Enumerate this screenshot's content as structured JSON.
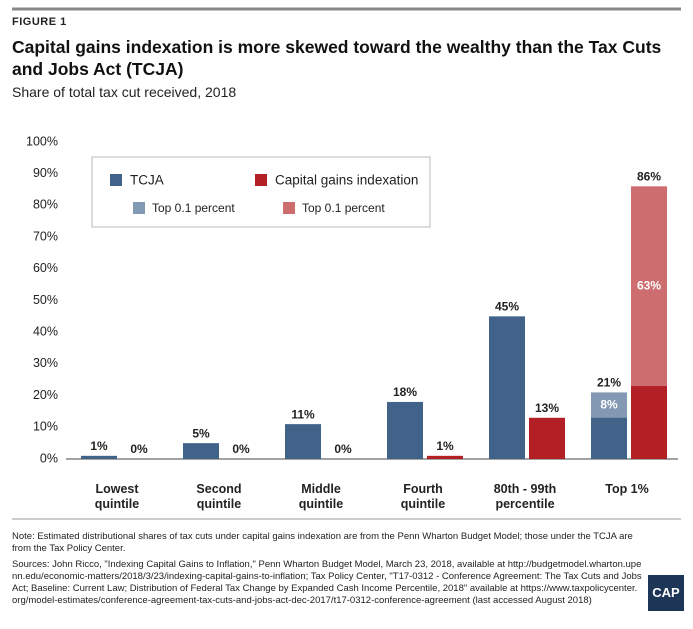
{
  "figure_label": "FIGURE 1",
  "chart_data": {
    "type": "bar",
    "title": "Capital gains indexation is more skewed toward the wealthy than the Tax Cuts and Jobs Act (TCJA)",
    "subtitle": "Share of total tax cut received, 2018",
    "categories": [
      "Lowest quintile",
      "Second quintile",
      "Middle quintile",
      "Fourth quintile",
      "80th - 99th percentile",
      "Top 1%"
    ],
    "series": [
      {
        "name": "TCJA",
        "color": "#41638a",
        "values": [
          1,
          5,
          11,
          18,
          45,
          21
        ],
        "value_labels": [
          "1%",
          "5%",
          "11%",
          "18%",
          "45%",
          "21%"
        ],
        "top_share": {
          "name": "Top 0.1 percent",
          "values": [
            null,
            null,
            null,
            null,
            null,
            8
          ],
          "value_labels": [
            null,
            null,
            null,
            null,
            null,
            "8%"
          ]
        }
      },
      {
        "name": "Capital gains indexation",
        "color": "#b21f24",
        "values": [
          0,
          0,
          0,
          1,
          13,
          86
        ],
        "value_labels": [
          "0%",
          "0%",
          "0%",
          "1%",
          "13%",
          "86%"
        ],
        "top_share": {
          "name": "Top 0.1 percent",
          "values": [
            null,
            null,
            null,
            null,
            null,
            63
          ],
          "value_labels": [
            null,
            null,
            null,
            null,
            null,
            "63%"
          ]
        }
      }
    ],
    "ylim": [
      0,
      100
    ],
    "yticks": [
      {
        "value": 0,
        "label": "0%"
      },
      {
        "value": 10,
        "label": "10%"
      },
      {
        "value": 20,
        "label": "20%"
      },
      {
        "value": 30,
        "label": "30%"
      },
      {
        "value": 40,
        "label": "40%"
      },
      {
        "value": 50,
        "label": "50%"
      },
      {
        "value": 60,
        "label": "60%"
      },
      {
        "value": 70,
        "label": "70%"
      },
      {
        "value": 80,
        "label": "80%"
      },
      {
        "value": 90,
        "label": "90%"
      },
      {
        "value": 100,
        "label": "100%"
      }
    ],
    "grid": false
  },
  "note": "Note: Estimated distributional shares of tax cuts under capital gains indexation are from the Penn Wharton Budget Model; those under the TCJA are from the Tax Policy Center.",
  "sources": "Sources: John Ricco, \"Indexing Capital Gains to Inflation,\" Penn Wharton Budget Model, March 23, 2018, available at http://budgetmodel.wharton.upenn.edu/economic-matters/2018/3/23/indexing-capital-gains-to-inflation; Tax Policy Center, \"T17-0312 - Conference Agreement: The Tax Cuts and Jobs Act; Baseline: Current Law; Distribution of Federal Tax Change by Expanded Cash Income Percentile, 2018\" available at https://www.taxpolicycenter.org/model-estimates/conference-agreement-tax-cuts-and-jobs-act-dec-2017/t17-0312-conference-agreement (last accessed August 2018)",
  "logo": "CAP"
}
